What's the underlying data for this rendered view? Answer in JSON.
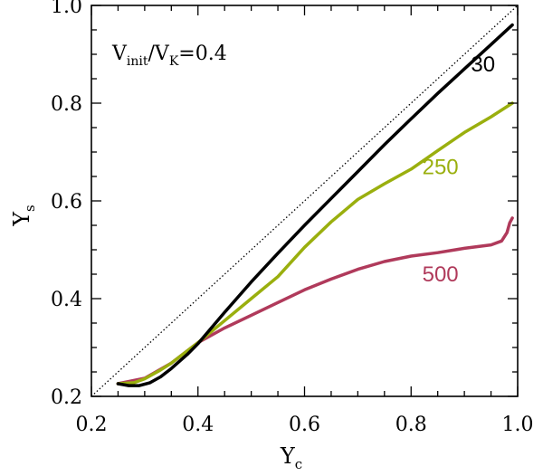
{
  "chart_data": {
    "type": "line",
    "xlabel": {
      "main": "Y",
      "sub": "c"
    },
    "ylabel": {
      "main": "Y",
      "sub": "s"
    },
    "xlim": [
      0.2,
      1.0
    ],
    "ylim": [
      0.2,
      1.0
    ],
    "xticks": [
      0.2,
      0.4,
      0.6,
      0.8,
      1.0
    ],
    "yticks": [
      0.2,
      0.4,
      0.6,
      0.8,
      1.0
    ],
    "xtick_labels": [
      "0.2",
      "0.4",
      "0.6",
      "0.8",
      "1.0"
    ],
    "ytick_labels": [
      "0.2",
      "0.4",
      "0.6",
      "0.8",
      "1.0"
    ],
    "grid": false,
    "annotation": {
      "v1": "V",
      "s1": "init",
      "slash": "/V",
      "s2": "K",
      "eq": "=0.4"
    },
    "reference_line": {
      "style": "dotted",
      "color": "#000000",
      "x": [
        0.2,
        1.0
      ],
      "y": [
        0.2,
        1.0
      ]
    },
    "series": [
      {
        "name": "30",
        "color": "#000000",
        "x": [
          0.25,
          0.27,
          0.29,
          0.31,
          0.33,
          0.35,
          0.38,
          0.4,
          0.45,
          0.5,
          0.55,
          0.6,
          0.65,
          0.7,
          0.75,
          0.8,
          0.85,
          0.9,
          0.95,
          0.99
        ],
        "y": [
          0.226,
          0.222,
          0.222,
          0.228,
          0.24,
          0.257,
          0.286,
          0.308,
          0.372,
          0.434,
          0.493,
          0.55,
          0.605,
          0.66,
          0.715,
          0.768,
          0.82,
          0.87,
          0.92,
          0.96
        ]
      },
      {
        "name": "250",
        "color": "#9aaf0e",
        "x": [
          0.25,
          0.28,
          0.3,
          0.33,
          0.35,
          0.4,
          0.45,
          0.5,
          0.55,
          0.6,
          0.65,
          0.7,
          0.75,
          0.8,
          0.85,
          0.9,
          0.95,
          0.99
        ],
        "y": [
          0.226,
          0.228,
          0.236,
          0.254,
          0.268,
          0.31,
          0.355,
          0.4,
          0.445,
          0.505,
          0.557,
          0.603,
          0.635,
          0.665,
          0.703,
          0.74,
          0.772,
          0.8
        ]
      },
      {
        "name": "500",
        "color": "#b03a5b",
        "x": [
          0.25,
          0.3,
          0.35,
          0.4,
          0.45,
          0.5,
          0.55,
          0.6,
          0.65,
          0.7,
          0.75,
          0.8,
          0.85,
          0.9,
          0.95,
          0.97,
          0.98,
          0.985,
          0.99
        ],
        "y": [
          0.226,
          0.237,
          0.268,
          0.31,
          0.34,
          0.366,
          0.392,
          0.418,
          0.44,
          0.46,
          0.476,
          0.487,
          0.494,
          0.503,
          0.51,
          0.518,
          0.535,
          0.555,
          0.565
        ]
      }
    ],
    "series_label_positions": {
      "30": {
        "x": 0.935,
        "y": 0.865
      },
      "250": {
        "x": 0.855,
        "y": 0.655
      },
      "500": {
        "x": 0.855,
        "y": 0.435
      }
    }
  }
}
